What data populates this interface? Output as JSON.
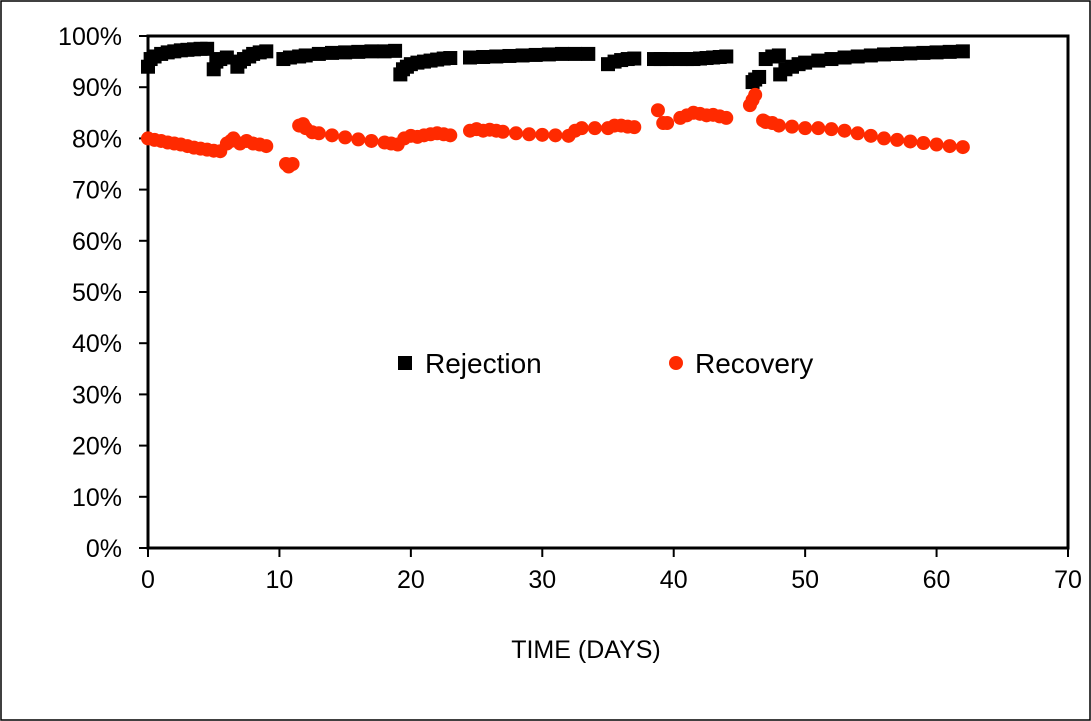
{
  "chart_data": {
    "type": "scatter",
    "title": "",
    "xlabel": "TIME (DAYS)",
    "ylabel": "",
    "xlim": [
      0,
      70
    ],
    "ylim": [
      0,
      1
    ],
    "x_ticks": [
      0,
      10,
      20,
      30,
      40,
      50,
      60,
      70
    ],
    "y_ticks": [
      0,
      0.1,
      0.2,
      0.3,
      0.4,
      0.5,
      0.6,
      0.7,
      0.8,
      0.9,
      1.0
    ],
    "x_tick_labels": [
      "0",
      "10",
      "20",
      "30",
      "40",
      "50",
      "60",
      "70"
    ],
    "y_tick_labels": [
      "0%",
      "10%",
      "20%",
      "30%",
      "40%",
      "50%",
      "60%",
      "70%",
      "80%",
      "90%",
      "100%"
    ],
    "grid": false,
    "legend": "center",
    "series": [
      {
        "name": "Rejection",
        "marker": "square",
        "color": "#000000",
        "points": [
          [
            0.0,
            0.94
          ],
          [
            0.2,
            0.955
          ],
          [
            0.5,
            0.96
          ],
          [
            1.0,
            0.965
          ],
          [
            1.5,
            0.968
          ],
          [
            2.0,
            0.97
          ],
          [
            2.5,
            0.972
          ],
          [
            3.0,
            0.973
          ],
          [
            3.5,
            0.974
          ],
          [
            4.0,
            0.975
          ],
          [
            4.5,
            0.975
          ],
          [
            5.0,
            0.935
          ],
          [
            5.2,
            0.95
          ],
          [
            5.5,
            0.955
          ],
          [
            6.0,
            0.958
          ],
          [
            6.8,
            0.94
          ],
          [
            7.0,
            0.95
          ],
          [
            7.3,
            0.955
          ],
          [
            7.7,
            0.96
          ],
          [
            8.0,
            0.965
          ],
          [
            8.5,
            0.968
          ],
          [
            9.0,
            0.97
          ],
          [
            10.3,
            0.955
          ],
          [
            10.8,
            0.958
          ],
          [
            11.5,
            0.96
          ],
          [
            12.0,
            0.962
          ],
          [
            13.0,
            0.965
          ],
          [
            14.0,
            0.967
          ],
          [
            15.0,
            0.968
          ],
          [
            16.0,
            0.969
          ],
          [
            17.0,
            0.97
          ],
          [
            18.0,
            0.97
          ],
          [
            18.8,
            0.971
          ],
          [
            19.2,
            0.925
          ],
          [
            19.4,
            0.935
          ],
          [
            19.7,
            0.94
          ],
          [
            20.0,
            0.945
          ],
          [
            20.5,
            0.948
          ],
          [
            21.0,
            0.95
          ],
          [
            21.5,
            0.952
          ],
          [
            22.0,
            0.954
          ],
          [
            22.5,
            0.956
          ],
          [
            23.0,
            0.957
          ],
          [
            24.5,
            0.958
          ],
          [
            25.5,
            0.959
          ],
          [
            26.5,
            0.96
          ],
          [
            27.5,
            0.961
          ],
          [
            28.5,
            0.962
          ],
          [
            29.5,
            0.963
          ],
          [
            30.5,
            0.964
          ],
          [
            31.5,
            0.965
          ],
          [
            32.5,
            0.965
          ],
          [
            33.5,
            0.965
          ],
          [
            35.0,
            0.945
          ],
          [
            35.5,
            0.95
          ],
          [
            36.0,
            0.953
          ],
          [
            36.5,
            0.955
          ],
          [
            37.0,
            0.956
          ],
          [
            38.5,
            0.955
          ],
          [
            39.0,
            0.955
          ],
          [
            39.5,
            0.955
          ],
          [
            40.5,
            0.955
          ],
          [
            41.0,
            0.955
          ],
          [
            41.5,
            0.955
          ],
          [
            42.0,
            0.956
          ],
          [
            42.5,
            0.957
          ],
          [
            43.0,
            0.958
          ],
          [
            43.5,
            0.959
          ],
          [
            44.0,
            0.96
          ],
          [
            46.0,
            0.91
          ],
          [
            46.2,
            0.915
          ],
          [
            46.5,
            0.92
          ],
          [
            47.0,
            0.955
          ],
          [
            47.5,
            0.96
          ],
          [
            48.0,
            0.962
          ],
          [
            48.1,
            0.925
          ],
          [
            48.5,
            0.935
          ],
          [
            49.0,
            0.94
          ],
          [
            49.5,
            0.945
          ],
          [
            50.0,
            0.948
          ],
          [
            51.0,
            0.952
          ],
          [
            52.0,
            0.955
          ],
          [
            53.0,
            0.958
          ],
          [
            54.0,
            0.96
          ],
          [
            55.0,
            0.962
          ],
          [
            56.0,
            0.964
          ],
          [
            57.0,
            0.965
          ],
          [
            58.0,
            0.966
          ],
          [
            59.0,
            0.967
          ],
          [
            60.0,
            0.968
          ],
          [
            61.0,
            0.969
          ],
          [
            62.0,
            0.97
          ]
        ]
      },
      {
        "name": "Recovery",
        "marker": "circle",
        "color": "#ff2a00",
        "points": [
          [
            0.0,
            0.8
          ],
          [
            0.5,
            0.797
          ],
          [
            1.0,
            0.795
          ],
          [
            1.5,
            0.792
          ],
          [
            2.0,
            0.79
          ],
          [
            2.5,
            0.788
          ],
          [
            3.0,
            0.785
          ],
          [
            3.5,
            0.782
          ],
          [
            4.0,
            0.78
          ],
          [
            4.5,
            0.778
          ],
          [
            5.0,
            0.776
          ],
          [
            5.5,
            0.775
          ],
          [
            6.0,
            0.79
          ],
          [
            6.3,
            0.795
          ],
          [
            6.5,
            0.8
          ],
          [
            7.0,
            0.79
          ],
          [
            7.5,
            0.795
          ],
          [
            8.0,
            0.79
          ],
          [
            8.5,
            0.788
          ],
          [
            9.0,
            0.785
          ],
          [
            10.5,
            0.75
          ],
          [
            10.7,
            0.745
          ],
          [
            11.0,
            0.75
          ],
          [
            11.5,
            0.825
          ],
          [
            11.8,
            0.828
          ],
          [
            12.0,
            0.82
          ],
          [
            12.5,
            0.812
          ],
          [
            13.0,
            0.81
          ],
          [
            14.0,
            0.806
          ],
          [
            15.0,
            0.802
          ],
          [
            16.0,
            0.798
          ],
          [
            17.0,
            0.795
          ],
          [
            18.0,
            0.792
          ],
          [
            18.5,
            0.79
          ],
          [
            19.0,
            0.788
          ],
          [
            19.5,
            0.8
          ],
          [
            20.0,
            0.805
          ],
          [
            20.5,
            0.803
          ],
          [
            21.0,
            0.806
          ],
          [
            21.5,
            0.808
          ],
          [
            22.0,
            0.81
          ],
          [
            22.5,
            0.808
          ],
          [
            23.0,
            0.806
          ],
          [
            24.5,
            0.815
          ],
          [
            25.0,
            0.818
          ],
          [
            25.5,
            0.815
          ],
          [
            26.0,
            0.817
          ],
          [
            26.5,
            0.815
          ],
          [
            27.0,
            0.813
          ],
          [
            28.0,
            0.81
          ],
          [
            29.0,
            0.808
          ],
          [
            30.0,
            0.807
          ],
          [
            31.0,
            0.806
          ],
          [
            32.0,
            0.805
          ],
          [
            32.5,
            0.815
          ],
          [
            33.0,
            0.82
          ],
          [
            34.0,
            0.82
          ],
          [
            35.0,
            0.82
          ],
          [
            35.5,
            0.825
          ],
          [
            36.0,
            0.825
          ],
          [
            36.5,
            0.823
          ],
          [
            37.0,
            0.822
          ],
          [
            38.8,
            0.855
          ],
          [
            39.2,
            0.83
          ],
          [
            39.5,
            0.83
          ],
          [
            40.5,
            0.84
          ],
          [
            41.0,
            0.845
          ],
          [
            41.5,
            0.85
          ],
          [
            42.0,
            0.848
          ],
          [
            42.5,
            0.845
          ],
          [
            43.0,
            0.846
          ],
          [
            43.5,
            0.843
          ],
          [
            44.0,
            0.84
          ],
          [
            45.8,
            0.865
          ],
          [
            46.0,
            0.875
          ],
          [
            46.2,
            0.885
          ],
          [
            46.8,
            0.835
          ],
          [
            47.0,
            0.832
          ],
          [
            47.5,
            0.83
          ],
          [
            48.0,
            0.825
          ],
          [
            49.0,
            0.823
          ],
          [
            50.0,
            0.82
          ],
          [
            51.0,
            0.82
          ],
          [
            52.0,
            0.818
          ],
          [
            53.0,
            0.815
          ],
          [
            54.0,
            0.81
          ],
          [
            55.0,
            0.805
          ],
          [
            56.0,
            0.8
          ],
          [
            57.0,
            0.797
          ],
          [
            58.0,
            0.794
          ],
          [
            59.0,
            0.791
          ],
          [
            60.0,
            0.788
          ],
          [
            61.0,
            0.785
          ],
          [
            62.0,
            0.783
          ]
        ]
      }
    ]
  }
}
